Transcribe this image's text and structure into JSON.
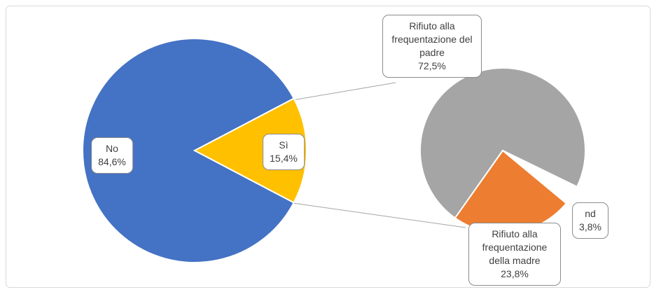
{
  "chart_data": [
    {
      "type": "pie",
      "categories": [
        "No",
        "Sì"
      ],
      "values": [
        84.6,
        15.4
      ],
      "value_labels": [
        "84,6%",
        "15,4%"
      ],
      "colors": [
        "#4472c4",
        "#ffc000"
      ]
    },
    {
      "type": "pie",
      "categories": [
        "Rifiuto alla frequentazione del padre",
        "Rifiuto alla frequentazione della madre",
        "nd"
      ],
      "values": [
        72.5,
        23.8,
        3.8
      ],
      "value_labels": [
        "72,5%",
        "23,8%",
        "3,8%"
      ],
      "colors": [
        "#a5a5a5",
        "#ed7d31",
        "#ffffff"
      ]
    }
  ]
}
